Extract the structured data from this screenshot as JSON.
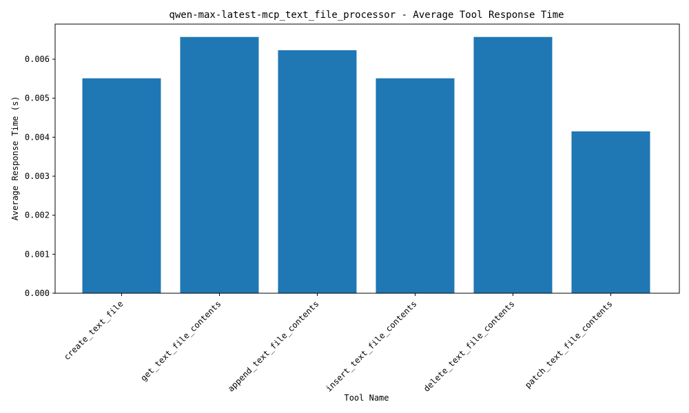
{
  "chart_data": {
    "type": "bar",
    "title": "qwen-max-latest-mcp_text_file_processor - Average Tool Response Time",
    "xlabel": "Tool Name",
    "ylabel": "Average Response Time (s)",
    "categories": [
      "create_text_file",
      "get_text_file_contents",
      "append_text_file_contents",
      "insert_text_file_contents",
      "delete_text_file_contents",
      "patch_text_file_contents"
    ],
    "values": [
      0.00551,
      0.00657,
      0.00623,
      0.00551,
      0.00657,
      0.00415
    ],
    "ylim": [
      0,
      0.0069
    ],
    "yticks": [
      0.0,
      0.001,
      0.002,
      0.003,
      0.004,
      0.005,
      0.006
    ],
    "ytick_labels": [
      "0.000",
      "0.001",
      "0.002",
      "0.003",
      "0.004",
      "0.005",
      "0.006"
    ],
    "bar_color": "#1f77b4",
    "grid": false,
    "legend": "none"
  }
}
